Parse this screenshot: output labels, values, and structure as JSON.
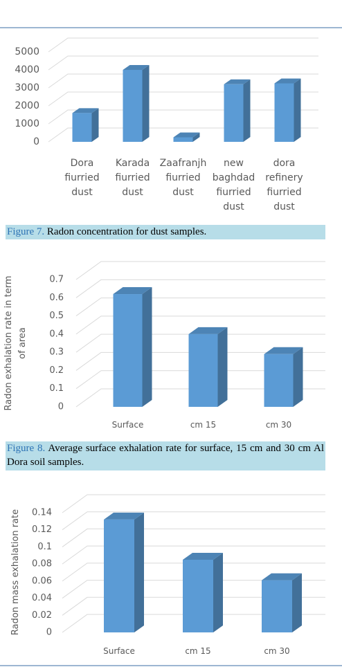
{
  "chart_data": [
    {
      "type": "bar3d",
      "categories": [
        "Dora fiurried dust",
        "Karada fiurried dust",
        "Zaafranjh fiurried dust",
        "new baghdad fiurried dust",
        "dora refinery fiurried dust"
      ],
      "values": [
        1600,
        4000,
        250,
        3200,
        3250
      ],
      "color": "#5b9bd5",
      "ylim": [
        0,
        5000
      ],
      "yticks": [
        0,
        1000,
        2000,
        3000,
        4000,
        5000
      ],
      "grid": true
    },
    {
      "type": "bar3d",
      "y_label": "Radon exhalation rate in term of area",
      "categories": [
        "Surface",
        "cm 15",
        "cm 30"
      ],
      "values": [
        0.62,
        0.4,
        0.29
      ],
      "color": "#5b9bd5",
      "ylim": [
        0,
        0.7
      ],
      "yticks": [
        0,
        0.1,
        0.2,
        0.3,
        0.4,
        0.5,
        0.6,
        0.7
      ],
      "grid": true
    },
    {
      "type": "bar3d",
      "y_label": "Radon mass exhalation rate",
      "categories": [
        "Surface",
        "cm 15",
        "cm 30"
      ],
      "values": [
        0.132,
        0.085,
        0.061
      ],
      "color": "#5b9bd5",
      "ylim": [
        0,
        0.14
      ],
      "yticks": [
        0,
        0.02,
        0.04,
        0.06,
        0.08,
        0.1,
        0.12,
        0.14
      ],
      "grid": true
    }
  ],
  "figures": [
    {
      "label": "Figure 7.",
      "text": "Radon concentration for dust samples."
    },
    {
      "label": "Figure 8.",
      "text": "Average surface exhalation rate for surface, 15 cm and 30 cm Al Dora soil samples."
    }
  ]
}
